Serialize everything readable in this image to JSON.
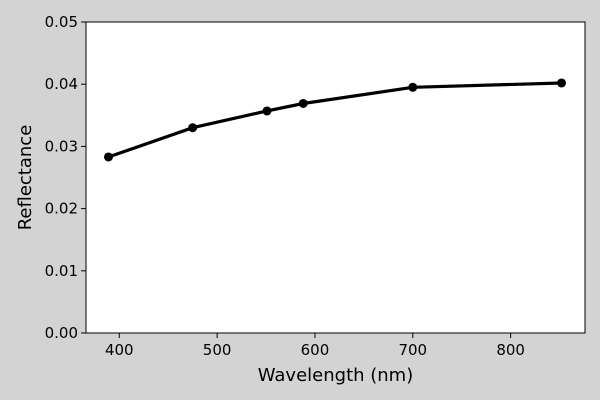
{
  "chart_data": {
    "type": "line",
    "title": "",
    "xlabel": "Wavelength (nm)",
    "ylabel": "Reflectance",
    "xlim": [
      366,
      876
    ],
    "ylim": [
      0.0,
      0.05
    ],
    "x_ticks": [
      400,
      500,
      600,
      700,
      800
    ],
    "x_tick_labels": [
      "400",
      "500",
      "600",
      "700",
      "800"
    ],
    "y_ticks": [
      0.0,
      0.01,
      0.02,
      0.03,
      0.04,
      0.05
    ],
    "y_tick_labels": [
      "0.00",
      "0.01",
      "0.02",
      "0.03",
      "0.04",
      "0.05"
    ],
    "grid": false,
    "series": [
      {
        "color": "#000000",
        "marker": "circle",
        "x": [
          389,
          475,
          551,
          588,
          700,
          852
        ],
        "y": [
          0.0283,
          0.033,
          0.0357,
          0.0369,
          0.0395,
          0.0402
        ]
      }
    ]
  },
  "colors": {
    "figure_background": "#d3d3d3",
    "plot_background": "#ffffff",
    "line": "#000000"
  }
}
